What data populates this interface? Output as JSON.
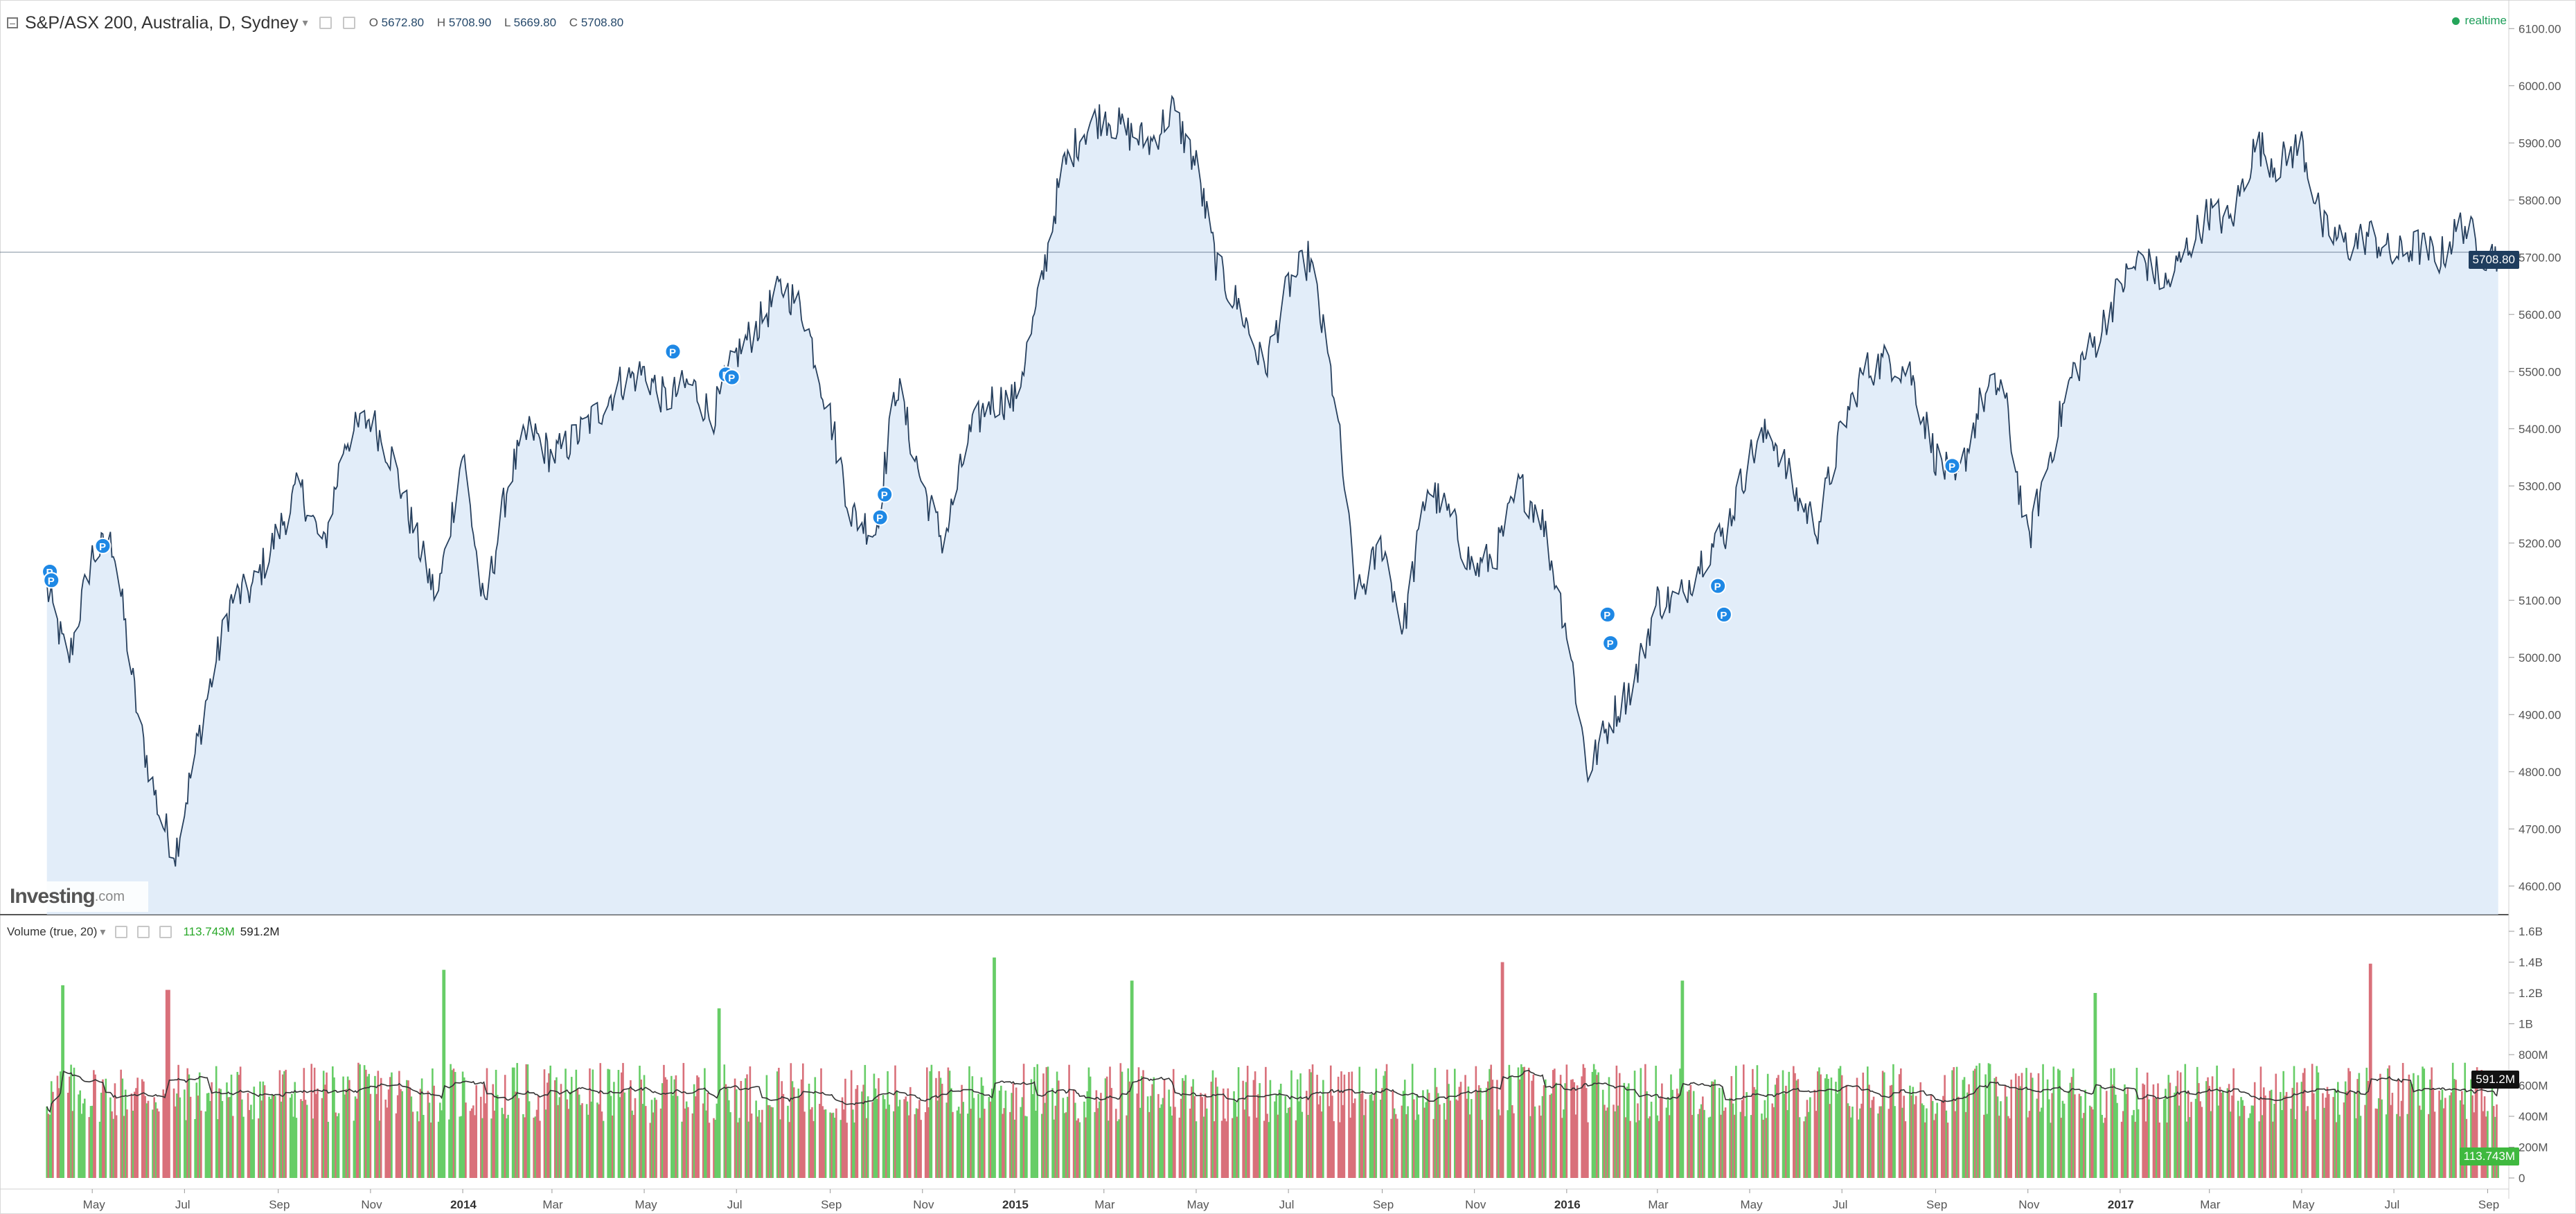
{
  "header": {
    "symbol_title": "S&P/ASX 200, Australia, D, Sydney",
    "open_label": "O",
    "open_value": "5672.80",
    "high_label": "H",
    "high_value": "5708.90",
    "low_label": "L",
    "low_value": "5669.80",
    "close_label": "C",
    "close_value": "5708.80",
    "realtime": "realtime"
  },
  "logo": {
    "main": "Investing",
    "sub": ".com"
  },
  "volume_panel": {
    "title": "Volume (true, 20)",
    "current_volume": "113.743M",
    "volume_ma": "591.2M"
  },
  "price_axis": [
    "6100.00",
    "6000.00",
    "5900.00",
    "5800.00",
    "5700.00",
    "5600.00",
    "5500.00",
    "5400.00",
    "5300.00",
    "5200.00",
    "5100.00",
    "5000.00",
    "4900.00",
    "4800.00",
    "4700.00",
    "4600.00"
  ],
  "volume_axis": [
    "1.6B",
    "1.4B",
    "1.2B",
    "1B",
    "800M",
    "600M",
    "400M",
    "200M",
    "0"
  ],
  "time_axis": [
    "May",
    "Jul",
    "Sep",
    "Nov",
    "2014",
    "Mar",
    "May",
    "Jul",
    "Sep",
    "Nov",
    "2015",
    "Mar",
    "May",
    "Jul",
    "Sep",
    "Nov",
    "2016",
    "Mar",
    "May",
    "Jul",
    "Sep",
    "Nov",
    "2017",
    "Mar",
    "May",
    "Jul",
    "Sep"
  ],
  "badges": {
    "last_price": "5708.80",
    "volume_ma": "591.2M",
    "volume": "113.743M"
  },
  "marker_label": "P",
  "colors": {
    "price_line": "#27405e",
    "price_fill": "#d6e6f6",
    "up_volume": "#67cd67",
    "down_volume": "#d9707a",
    "volume_ma_line": "#333333",
    "marker": "#1e88e5",
    "realtime": "#25a55a"
  },
  "chart_data": [
    {
      "type": "area",
      "title": "S&P/ASX 200, Australia, D, Sydney",
      "ylim": [
        4550,
        6150
      ],
      "x": [
        "2013-04-01",
        "2013-04-15",
        "2013-05-01",
        "2013-05-15",
        "2013-06-01",
        "2013-06-15",
        "2013-06-25",
        "2013-07-15",
        "2013-08-01",
        "2013-08-15",
        "2013-09-01",
        "2013-09-15",
        "2013-10-01",
        "2013-10-15",
        "2013-11-01",
        "2013-11-15",
        "2013-12-01",
        "2013-12-15",
        "2014-01-01",
        "2014-01-15",
        "2014-02-01",
        "2014-02-15",
        "2014-03-01",
        "2014-03-15",
        "2014-04-01",
        "2014-04-15",
        "2014-05-01",
        "2014-05-15",
        "2014-06-01",
        "2014-06-15",
        "2014-07-01",
        "2014-07-15",
        "2014-08-01",
        "2014-08-15",
        "2014-09-01",
        "2014-09-15",
        "2014-10-01",
        "2014-10-15",
        "2014-11-01",
        "2014-11-15",
        "2014-12-01",
        "2014-12-15",
        "2015-01-01",
        "2015-01-15",
        "2015-02-01",
        "2015-02-15",
        "2015-03-01",
        "2015-03-15",
        "2015-04-01",
        "2015-04-15",
        "2015-05-01",
        "2015-05-15",
        "2015-06-01",
        "2015-06-15",
        "2015-07-01",
        "2015-07-15",
        "2015-08-01",
        "2015-08-15",
        "2015-09-01",
        "2015-09-15",
        "2015-10-01",
        "2015-10-15",
        "2015-11-01",
        "2015-11-15",
        "2015-12-01",
        "2015-12-15",
        "2016-01-01",
        "2016-01-15",
        "2016-02-01",
        "2016-02-15",
        "2016-03-01",
        "2016-03-15",
        "2016-04-01",
        "2016-04-15",
        "2016-05-01",
        "2016-05-15",
        "2016-06-01",
        "2016-06-15",
        "2016-07-01",
        "2016-07-15",
        "2016-08-01",
        "2016-08-15",
        "2016-09-01",
        "2016-09-15",
        "2016-10-01",
        "2016-10-15",
        "2016-11-01",
        "2016-11-15",
        "2016-12-01",
        "2016-12-15",
        "2017-01-01",
        "2017-01-15",
        "2017-02-01",
        "2017-02-15",
        "2017-03-01",
        "2017-03-15",
        "2017-04-01",
        "2017-04-15",
        "2017-05-01",
        "2017-05-15",
        "2017-06-01",
        "2017-06-15",
        "2017-07-01",
        "2017-07-15",
        "2017-08-01",
        "2017-08-15",
        "2017-09-01",
        "2017-09-08"
      ],
      "values": [
        5120,
        4990,
        5180,
        5200,
        4880,
        4720,
        4660,
        4920,
        5100,
        5120,
        5220,
        5300,
        5190,
        5380,
        5420,
        5350,
        5210,
        5100,
        5360,
        5080,
        5320,
        5400,
        5350,
        5380,
        5430,
        5480,
        5500,
        5450,
        5480,
        5420,
        5530,
        5580,
        5650,
        5600,
        5420,
        5250,
        5220,
        5480,
        5300,
        5200,
        5380,
        5450,
        5450,
        5600,
        5850,
        5920,
        5950,
        5920,
        5900,
        5960,
        5860,
        5680,
        5600,
        5500,
        5650,
        5700,
        5450,
        5100,
        5200,
        5050,
        5300,
        5250,
        5150,
        5180,
        5300,
        5250,
        5050,
        4800,
        4900,
        4960,
        5100,
        5100,
        5180,
        5220,
        5350,
        5400,
        5280,
        5230,
        5400,
        5500,
        5520,
        5500,
        5350,
        5300,
        5450,
        5480,
        5200,
        5350,
        5500,
        5550,
        5650,
        5700,
        5650,
        5720,
        5780,
        5760,
        5900,
        5860,
        5900,
        5750,
        5720,
        5740,
        5700,
        5720,
        5700,
        5760,
        5700,
        5710
      ],
      "markers": [
        {
          "x": "2013-04-03",
          "y": 5150,
          "label": "P"
        },
        {
          "x": "2013-04-04",
          "y": 5135,
          "label": "P"
        },
        {
          "x": "2013-05-08",
          "y": 5195,
          "label": "P"
        },
        {
          "x": "2014-05-20",
          "y": 5535,
          "label": "P"
        },
        {
          "x": "2014-06-24",
          "y": 5495,
          "label": "P"
        },
        {
          "x": "2014-06-28",
          "y": 5490,
          "label": "P"
        },
        {
          "x": "2014-10-07",
          "y": 5285,
          "label": "P"
        },
        {
          "x": "2014-10-04",
          "y": 5245,
          "label": "P"
        },
        {
          "x": "2016-01-28",
          "y": 5075,
          "label": "P"
        },
        {
          "x": "2016-01-30",
          "y": 5025,
          "label": "P"
        },
        {
          "x": "2016-04-10",
          "y": 5125,
          "label": "P"
        },
        {
          "x": "2016-04-14",
          "y": 5075,
          "label": "P"
        },
        {
          "x": "2016-09-12",
          "y": 5335,
          "label": "P"
        }
      ],
      "last_value": 5708.8
    },
    {
      "type": "bar",
      "title": "Volume (true, 20)",
      "ylim": [
        0,
        1600000000
      ],
      "x_range": [
        "2013-04-01",
        "2017-09-08"
      ],
      "trading_days": 1160,
      "typical_volume": 650000000,
      "ma_period": 20,
      "spikes": [
        {
          "x": "2013-04-12",
          "value": 1250000000,
          "dir": "up"
        },
        {
          "x": "2013-06-20",
          "value": 1220000000,
          "dir": "down"
        },
        {
          "x": "2013-12-20",
          "value": 1350000000,
          "dir": "up"
        },
        {
          "x": "2014-06-20",
          "value": 1100000000,
          "dir": "up"
        },
        {
          "x": "2014-12-19",
          "value": 1430000000,
          "dir": "up"
        },
        {
          "x": "2015-03-20",
          "value": 1280000000,
          "dir": "up"
        },
        {
          "x": "2015-11-20",
          "value": 1400000000,
          "dir": "down"
        },
        {
          "x": "2016-03-18",
          "value": 1280000000,
          "dir": "up"
        },
        {
          "x": "2016-12-16",
          "value": 1200000000,
          "dir": "up"
        },
        {
          "x": "2017-06-16",
          "value": 1390000000,
          "dir": "down"
        }
      ],
      "last_value": 113743000,
      "last_ma": 591200000
    }
  ]
}
